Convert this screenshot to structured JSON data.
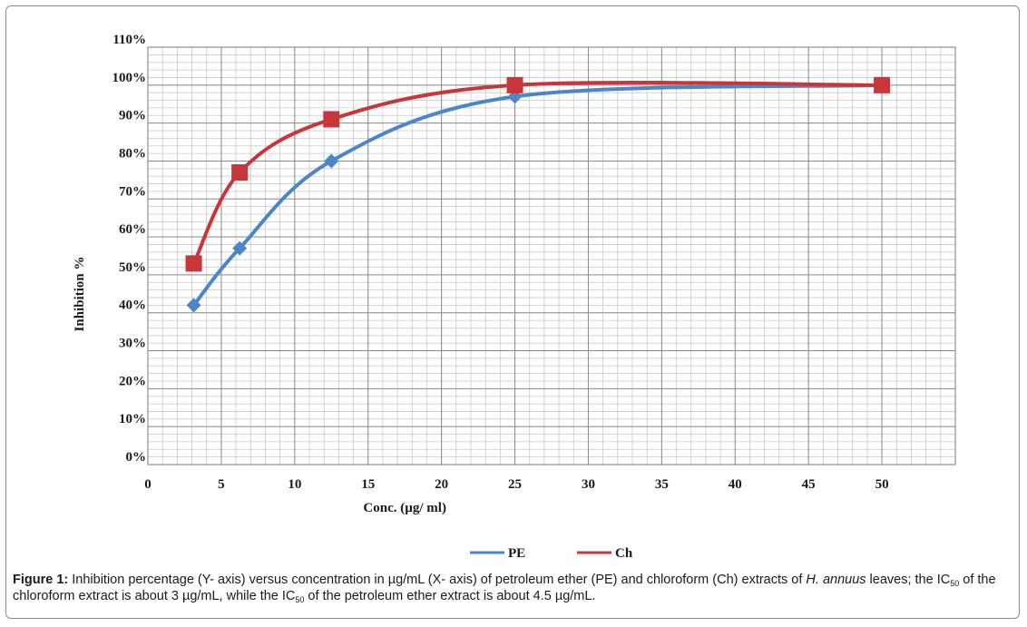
{
  "chart_data": {
    "type": "line",
    "xlabel": "Conc. (µg/ ml)",
    "ylabel": "Inhibition %",
    "xlim": [
      0,
      55
    ],
    "ylim": [
      0,
      1.1
    ],
    "x_ticks": [
      0,
      5,
      10,
      15,
      20,
      25,
      30,
      35,
      40,
      45,
      50
    ],
    "y_ticks": [
      0,
      0.1,
      0.2,
      0.3,
      0.4,
      0.5,
      0.6,
      0.7,
      0.8,
      0.9,
      1.0,
      1.1
    ],
    "y_tick_labels": [
      "0%",
      "10%",
      "20%",
      "30%",
      "40%",
      "50%",
      "60%",
      "70%",
      "80%",
      "90%",
      "100%",
      "110%"
    ],
    "grid": true,
    "legend_position": "bottom",
    "series": [
      {
        "name": "PE",
        "color": "#4a86c8",
        "marker": "diamond",
        "x": [
          3.125,
          6.25,
          12.5,
          25,
          50
        ],
        "y": [
          0.42,
          0.57,
          0.8,
          0.97,
          1.0
        ]
      },
      {
        "name": "Ch",
        "color": "#c8363a",
        "marker": "square",
        "x": [
          3.125,
          6.25,
          12.5,
          25,
          50
        ],
        "y": [
          0.53,
          0.77,
          0.91,
          1.0,
          1.0
        ]
      }
    ]
  },
  "caption": {
    "label": "Figure 1:",
    "part1": " Inhibition percentage (Y- axis) versus concentration in µg/mL (X- axis) of petroleum ether (PE) and chloroform (Ch) extracts of ",
    "species": "H. annuus",
    "part2": " leaves; the IC",
    "sub1": "50",
    "part3": " of the chloroform extract is about 3 µg/mL, while the IC",
    "sub2": "50",
    "part4": " of the petroleum ether extract is about 4.5 µg/mL."
  }
}
